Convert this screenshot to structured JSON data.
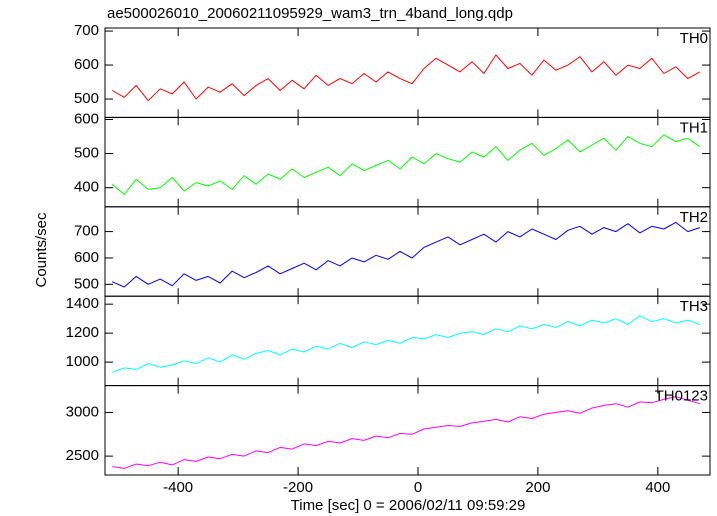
{
  "chart_data": {
    "type": "line",
    "title": "ae500026010_20060211095929_wam3_trn_4band_long.qdp",
    "xlabel": "Time [sec] 0 = 2006/02/11 09:59:29",
    "ylabel": "Counts/sec",
    "xlim": [
      -522,
      487
    ],
    "xticks": [
      -400,
      -200,
      0,
      200,
      400
    ],
    "x": [
      -510,
      -490,
      -470,
      -450,
      -430,
      -410,
      -390,
      -370,
      -350,
      -330,
      -310,
      -290,
      -270,
      -250,
      -230,
      -210,
      -190,
      -170,
      -150,
      -130,
      -110,
      -90,
      -70,
      -50,
      -30,
      -10,
      10,
      30,
      50,
      70,
      90,
      110,
      130,
      150,
      170,
      190,
      210,
      230,
      250,
      270,
      290,
      310,
      330,
      350,
      370,
      390,
      410,
      430,
      450,
      470
    ],
    "panels": [
      {
        "name": "TH0",
        "color": "#ff0000",
        "ylim": [
          446,
          709
        ],
        "yticks": [
          500,
          600,
          700
        ],
        "values": [
          525,
          505,
          540,
          495,
          530,
          515,
          550,
          500,
          535,
          520,
          545,
          510,
          540,
          560,
          525,
          555,
          530,
          570,
          540,
          560,
          545,
          575,
          550,
          580,
          560,
          545,
          590,
          620,
          600,
          580,
          610,
          575,
          630,
          590,
          605,
          570,
          615,
          585,
          600,
          625,
          580,
          610,
          570,
          600,
          590,
          620,
          575,
          595,
          560,
          580
        ]
      },
      {
        "name": "TH1",
        "color": "#00ff00",
        "ylim": [
          344,
          606
        ],
        "yticks": [
          400,
          500,
          600
        ],
        "values": [
          410,
          380,
          425,
          395,
          400,
          430,
          390,
          415,
          405,
          420,
          395,
          435,
          410,
          440,
          425,
          455,
          430,
          445,
          460,
          435,
          470,
          450,
          465,
          480,
          455,
          490,
          470,
          500,
          485,
          475,
          505,
          490,
          520,
          480,
          510,
          530,
          495,
          515,
          540,
          505,
          525,
          545,
          510,
          550,
          530,
          520,
          555,
          535,
          545,
          520
        ]
      },
      {
        "name": "TH2",
        "color": "#0000ff",
        "ylim": [
          455,
          794
        ],
        "yticks": [
          500,
          600,
          700
        ],
        "values": [
          510,
          490,
          530,
          500,
          520,
          495,
          540,
          515,
          530,
          505,
          550,
          525,
          545,
          570,
          540,
          560,
          580,
          555,
          590,
          570,
          600,
          585,
          610,
          595,
          625,
          600,
          640,
          660,
          680,
          650,
          670,
          690,
          660,
          700,
          680,
          710,
          690,
          670,
          705,
          720,
          690,
          715,
          700,
          730,
          695,
          720,
          710,
          735,
          700,
          715
        ]
      },
      {
        "name": "TH3",
        "color": "#00ffff",
        "ylim": [
          838,
          1455
        ],
        "yticks": [
          1000,
          1200,
          1400
        ],
        "values": [
          930,
          960,
          950,
          990,
          965,
          980,
          1010,
          990,
          1030,
          1000,
          1050,
          1020,
          1060,
          1080,
          1050,
          1090,
          1070,
          1110,
          1090,
          1130,
          1100,
          1140,
          1120,
          1150,
          1130,
          1170,
          1160,
          1190,
          1170,
          1200,
          1210,
          1190,
          1230,
          1210,
          1250,
          1230,
          1260,
          1240,
          1280,
          1250,
          1290,
          1270,
          1300,
          1260,
          1320,
          1280,
          1300,
          1270,
          1290,
          1260
        ]
      },
      {
        "name": "TH0123",
        "color": "#ff00ff",
        "ylim": [
          2284,
          3307
        ],
        "yticks": [
          2500,
          3000
        ],
        "values": [
          2380,
          2360,
          2410,
          2390,
          2430,
          2400,
          2460,
          2440,
          2490,
          2470,
          2520,
          2500,
          2560,
          2540,
          2600,
          2580,
          2640,
          2620,
          2670,
          2650,
          2700,
          2680,
          2730,
          2710,
          2760,
          2750,
          2810,
          2830,
          2850,
          2840,
          2880,
          2900,
          2920,
          2890,
          2950,
          2930,
          2980,
          3000,
          3020,
          2990,
          3050,
          3080,
          3100,
          3060,
          3120,
          3110,
          3150,
          3180,
          3140,
          3100
        ]
      }
    ]
  }
}
